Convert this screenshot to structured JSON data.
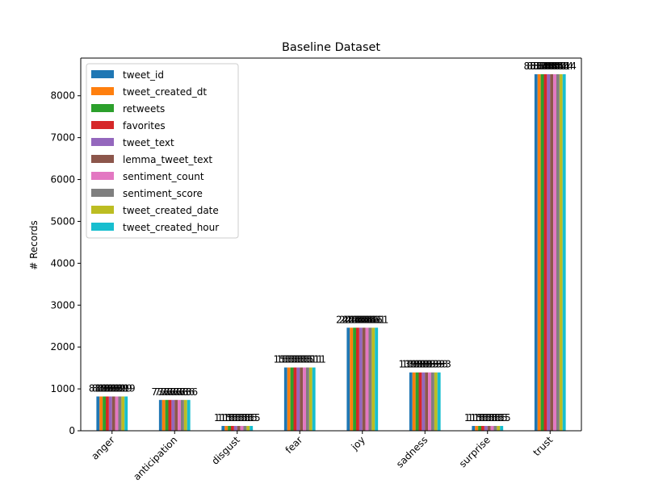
{
  "chart_data": {
    "type": "bar",
    "title": "Baseline Dataset",
    "xlabel": "",
    "ylabel": "# Records",
    "ylim": [
      0,
      8900
    ],
    "yticks": [
      0,
      1000,
      2000,
      3000,
      4000,
      5000,
      6000,
      7000,
      8000
    ],
    "categories": [
      "anger",
      "anticipation",
      "disgust",
      "fear",
      "joy",
      "sadness",
      "surprise",
      "trust"
    ],
    "tick_rotation": 45,
    "grid": false,
    "legend_placement": "upper-left",
    "series": [
      {
        "name": "tweet_id",
        "color": "#1f77b4",
        "values": [
          819,
          736,
          115,
          1511,
          2461,
          1393,
          115,
          8514
        ]
      },
      {
        "name": "tweet_created_dt",
        "color": "#ff7f0e",
        "values": [
          819,
          736,
          115,
          1511,
          2461,
          1393,
          115,
          8514
        ]
      },
      {
        "name": "retweets",
        "color": "#2ca02c",
        "values": [
          819,
          736,
          115,
          1511,
          2461,
          1393,
          115,
          8514
        ]
      },
      {
        "name": "favorites",
        "color": "#d62728",
        "values": [
          819,
          736,
          115,
          1511,
          2461,
          1393,
          115,
          8514
        ]
      },
      {
        "name": "tweet_text",
        "color": "#9467bd",
        "values": [
          819,
          736,
          115,
          1511,
          2461,
          1393,
          115,
          8514
        ]
      },
      {
        "name": "lemma_tweet_text",
        "color": "#8c564b",
        "values": [
          819,
          736,
          115,
          1511,
          2461,
          1393,
          115,
          8514
        ]
      },
      {
        "name": "sentiment_count",
        "color": "#e377c2",
        "values": [
          819,
          736,
          115,
          1511,
          2461,
          1393,
          115,
          8514
        ]
      },
      {
        "name": "sentiment_score",
        "color": "#7f7f7f",
        "values": [
          819,
          736,
          115,
          1511,
          2461,
          1393,
          115,
          8514
        ]
      },
      {
        "name": "tweet_created_date",
        "color": "#bcbd22",
        "values": [
          819,
          736,
          115,
          1511,
          2461,
          1393,
          115,
          8514
        ]
      },
      {
        "name": "tweet_created_hour",
        "color": "#17becf",
        "values": [
          819,
          736,
          115,
          1511,
          2461,
          1393,
          115,
          8514
        ]
      }
    ]
  }
}
